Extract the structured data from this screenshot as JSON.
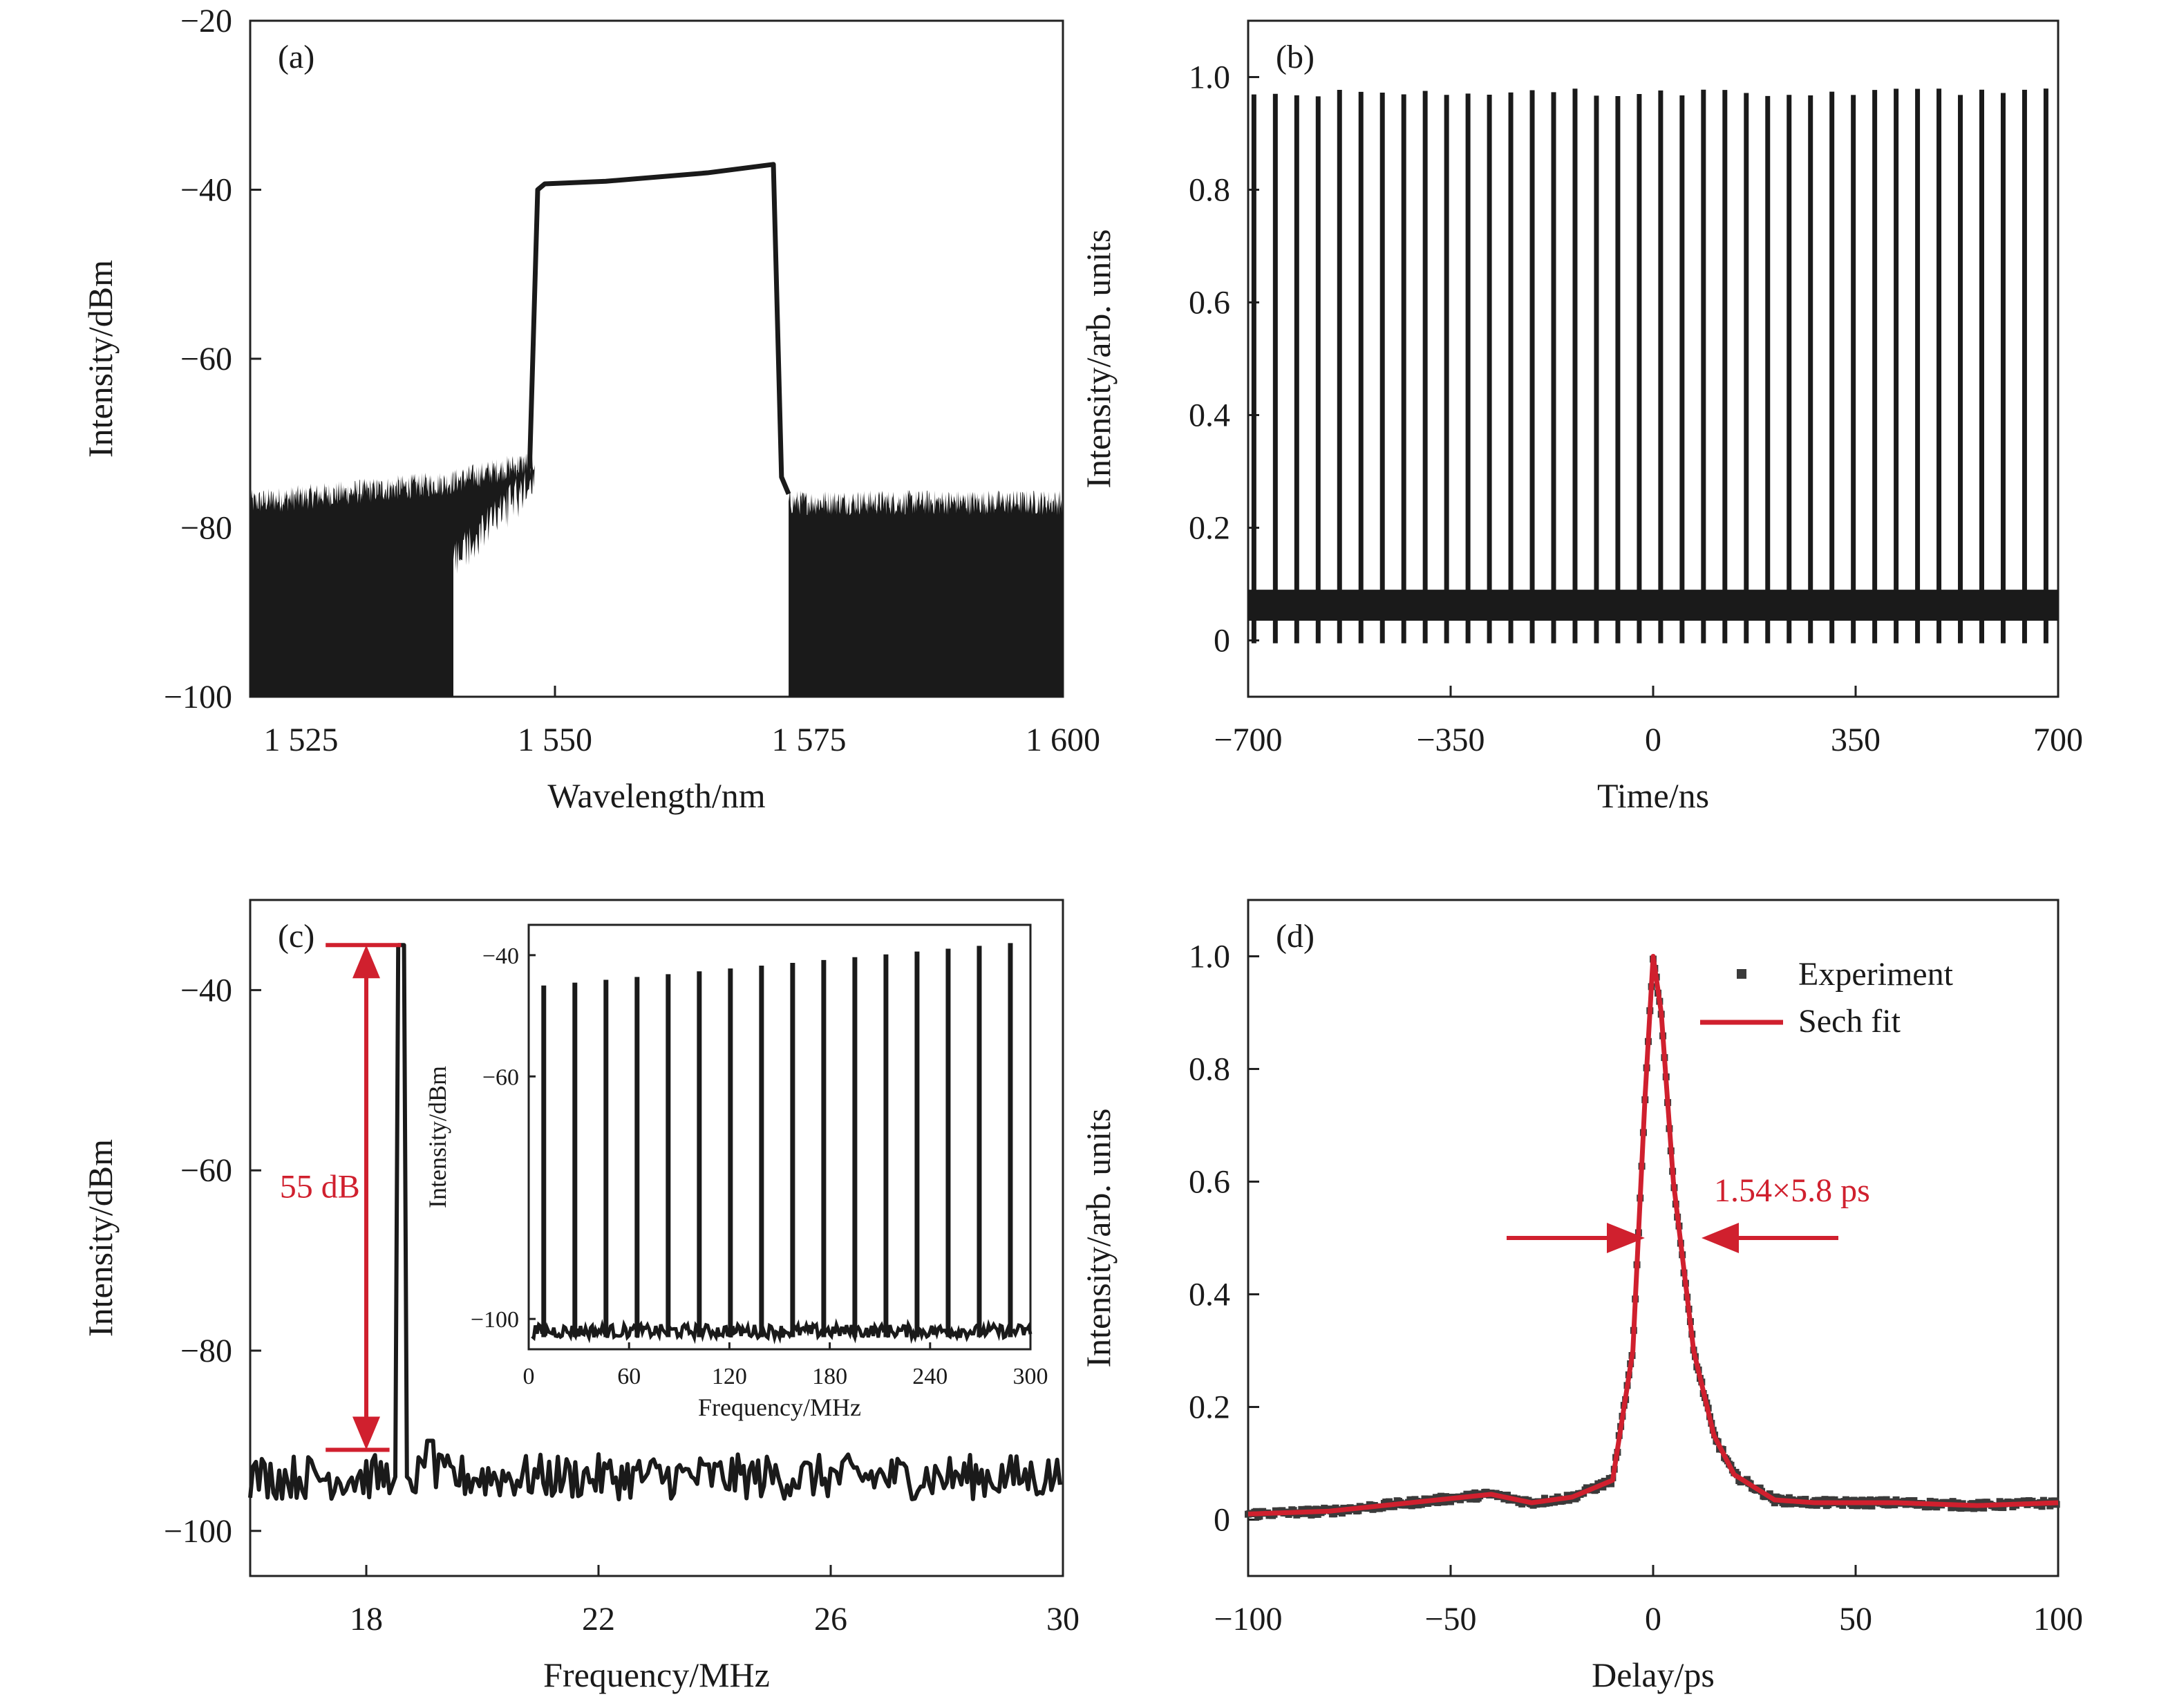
{
  "colors": {
    "trace": "#1a1a1a",
    "fit": "#d0202e",
    "annotation": "#d0202e"
  },
  "chart_data": [
    {
      "panel_label": "(a)",
      "type": "line",
      "xlabel": "Wavelength/nm",
      "ylabel": "Intensity/dBm",
      "xlim": [
        1520,
        1600
      ],
      "ylim": [
        -100,
        -20
      ],
      "x_ticks": [
        1525,
        1550,
        1575,
        1600
      ],
      "x_tick_labels": [
        "1 525",
        "1 550",
        "1 575",
        "1 600"
      ],
      "y_ticks": [
        -100,
        -80,
        -60,
        -40,
        -20
      ],
      "y_tick_labels": [
        "−100",
        "−80",
        "−60",
        "−40",
        "−20"
      ],
      "series": [
        {
          "x": [
            1520,
            1540,
            1548,
            1549,
            1550,
            1560,
            1571,
            1572,
            1573,
            1600
          ],
          "y": [
            -77,
            -74,
            -72,
            -39.5,
            -39,
            -38.5,
            -37,
            -78,
            -76,
            -77
          ]
        }
      ],
      "noise_floor_band": [
        -100,
        -77
      ]
    },
    {
      "panel_label": "(b)",
      "type": "line",
      "xlabel": "Time/ns",
      "ylabel": "Intensity/arb. units",
      "xlim": [
        -700,
        700
      ],
      "ylim": [
        -0.1,
        1.1
      ],
      "x_ticks": [
        -700,
        -350,
        0,
        350,
        700
      ],
      "x_tick_labels": [
        "−700",
        "−350",
        "0",
        "350",
        "700"
      ],
      "y_ticks": [
        0,
        0.2,
        0.4,
        0.6,
        0.8,
        1.0
      ],
      "y_tick_labels": [
        "0",
        "0.2",
        "0.4",
        "0.6",
        "0.8",
        "1.0"
      ],
      "pulse_train": {
        "first": -690,
        "period": 37.0,
        "count": 38,
        "peak": 0.98,
        "baseline": 0.06
      }
    },
    {
      "panel_label": "(c)",
      "type": "line",
      "xlabel": "Frequency/MHz",
      "ylabel": "Intensity/dBm",
      "xlim": [
        16,
        30
      ],
      "ylim": [
        -105,
        -30
      ],
      "x_ticks": [
        18,
        22,
        26,
        30
      ],
      "x_tick_labels": [
        "18",
        "22",
        "26",
        "30"
      ],
      "y_ticks": [
        -100,
        -80,
        -60,
        -40
      ],
      "y_tick_labels": [
        "−100",
        "−80",
        "−60",
        "−40"
      ],
      "peak": {
        "x": 18.6,
        "y": -35
      },
      "noise_floor": -94,
      "annotation": {
        "text": "55 dB",
        "top": -35,
        "bottom": -91
      },
      "inset": {
        "xlabel": "Frequency/MHz",
        "ylabel": "Intensity/dBm",
        "xlim": [
          0,
          300
        ],
        "ylim": [
          -105,
          -35
        ],
        "x_ticks": [
          0,
          60,
          120,
          180,
          240,
          300
        ],
        "x_tick_labels": [
          "0",
          "60",
          "120",
          "180",
          "240",
          "300"
        ],
        "y_ticks": [
          -100,
          -60,
          -40
        ],
        "y_tick_labels": [
          "−100",
          "−60",
          "−40"
        ],
        "harmonics": {
          "first": 9,
          "spacing": 18.6,
          "count": 16,
          "peak_start": -45,
          "peak_end": -38,
          "floor": -102
        }
      }
    },
    {
      "panel_label": "(d)",
      "type": "line",
      "xlabel": "Delay/ps",
      "ylabel": "Intensity/arb. units",
      "xlim": [
        -100,
        100
      ],
      "ylim": [
        -0.1,
        1.1
      ],
      "x_ticks": [
        -100,
        -50,
        0,
        50,
        100
      ],
      "x_tick_labels": [
        "−100",
        "−50",
        "0",
        "50",
        "100"
      ],
      "y_ticks": [
        0,
        0.2,
        0.4,
        0.6,
        0.8,
        1.0
      ],
      "y_tick_labels": [
        "0",
        "0.2",
        "0.4",
        "0.6",
        "0.8",
        "1.0"
      ],
      "legend": {
        "position": "top-right",
        "entries": [
          "Experiment",
          "Sech fit"
        ]
      },
      "annotation": {
        "text": "1.54×5.8 ps",
        "level": 0.5
      },
      "series": [
        {
          "name": "Experiment",
          "x": [
            -100,
            -80,
            -60,
            -40,
            -30,
            -20,
            -10,
            -5,
            -2,
            0,
            2,
            5,
            10,
            15,
            20,
            30,
            40,
            60,
            80,
            100
          ],
          "y": [
            0.01,
            0.015,
            0.03,
            0.045,
            0.03,
            0.04,
            0.07,
            0.3,
            0.75,
            1.0,
            0.9,
            0.6,
            0.3,
            0.15,
            0.08,
            0.035,
            0.03,
            0.03,
            0.025,
            0.03
          ]
        },
        {
          "name": "Sech fit",
          "x": [
            -100,
            -80,
            -60,
            -40,
            -30,
            -20,
            -10,
            -5,
            -2,
            0,
            2,
            5,
            10,
            15,
            20,
            30,
            40,
            60,
            80,
            100
          ],
          "y": [
            0.01,
            0.015,
            0.03,
            0.045,
            0.03,
            0.04,
            0.07,
            0.3,
            0.75,
            1.0,
            0.9,
            0.6,
            0.3,
            0.15,
            0.08,
            0.035,
            0.03,
            0.03,
            0.025,
            0.03
          ]
        }
      ]
    }
  ]
}
